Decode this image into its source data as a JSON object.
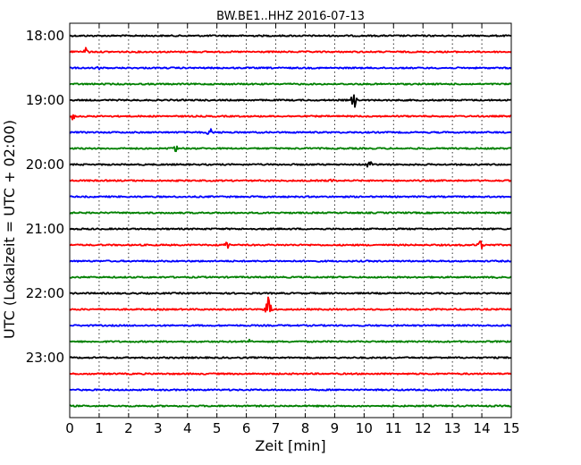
{
  "chart_data": {
    "type": "line",
    "title": "BW.BE1..HHZ 2016-07-13",
    "xlabel": "Zeit  [min]",
    "ylabel": "UTC (Lokalzeit = UTC + 02:00)",
    "x_ticks": [
      "0",
      "1",
      "2",
      "3",
      "4",
      "5",
      "6",
      "7",
      "8",
      "9",
      "10",
      "11",
      "12",
      "13",
      "14",
      "15"
    ],
    "xlim": [
      0,
      15
    ],
    "y_ticks": [
      "18:00",
      "19:00",
      "20:00",
      "21:00",
      "22:00",
      "23:00"
    ],
    "grid": "vertical dotted at each minute",
    "trace_colors": [
      "#000000",
      "#ff0000",
      "#0000ff",
      "#008000"
    ],
    "traces": [
      {
        "start": "18:00",
        "color": "#000000",
        "events": []
      },
      {
        "start": "18:15",
        "color": "#ff0000",
        "events": [
          {
            "x": 0.55,
            "amp": 5
          }
        ]
      },
      {
        "start": "18:30",
        "color": "#0000ff",
        "events": [
          {
            "x": 1.0,
            "amp": 2
          }
        ]
      },
      {
        "start": "18:45",
        "color": "#008000",
        "events": []
      },
      {
        "start": "19:00",
        "color": "#000000",
        "events": [
          {
            "x": 9.65,
            "amp": 9
          }
        ]
      },
      {
        "start": "19:15",
        "color": "#ff0000",
        "events": [
          {
            "x": 0.1,
            "amp": 4
          }
        ]
      },
      {
        "start": "19:30",
        "color": "#0000ff",
        "events": [
          {
            "x": 4.75,
            "amp": 5
          }
        ]
      },
      {
        "start": "19:45",
        "color": "#008000",
        "events": [
          {
            "x": 3.6,
            "amp": 4
          }
        ]
      },
      {
        "start": "20:00",
        "color": "#000000",
        "events": [
          {
            "x": 10.2,
            "amp": 8
          }
        ]
      },
      {
        "start": "20:15",
        "color": "#ff0000",
        "events": [
          {
            "x": 8.9,
            "amp": 2
          }
        ]
      },
      {
        "start": "20:30",
        "color": "#0000ff",
        "events": []
      },
      {
        "start": "20:45",
        "color": "#008000",
        "events": []
      },
      {
        "start": "21:00",
        "color": "#000000",
        "events": []
      },
      {
        "start": "21:15",
        "color": "#ff0000",
        "events": [
          {
            "x": 5.35,
            "amp": 4
          },
          {
            "x": 13.95,
            "amp": 5
          }
        ]
      },
      {
        "start": "21:30",
        "color": "#0000ff",
        "events": []
      },
      {
        "start": "21:45",
        "color": "#008000",
        "events": [
          {
            "x": 14.5,
            "amp": 2
          }
        ]
      },
      {
        "start": "22:00",
        "color": "#000000",
        "events": []
      },
      {
        "start": "22:15",
        "color": "#ff0000",
        "events": [
          {
            "x": 6.75,
            "amp": 15
          }
        ]
      },
      {
        "start": "22:30",
        "color": "#0000ff",
        "events": []
      },
      {
        "start": "22:45",
        "color": "#008000",
        "events": [
          {
            "x": 6.1,
            "amp": 2
          }
        ]
      },
      {
        "start": "23:00",
        "color": "#000000",
        "events": []
      },
      {
        "start": "23:15",
        "color": "#ff0000",
        "events": []
      },
      {
        "start": "23:30",
        "color": "#0000ff",
        "events": []
      },
      {
        "start": "23:45",
        "color": "#008000",
        "events": []
      }
    ]
  }
}
